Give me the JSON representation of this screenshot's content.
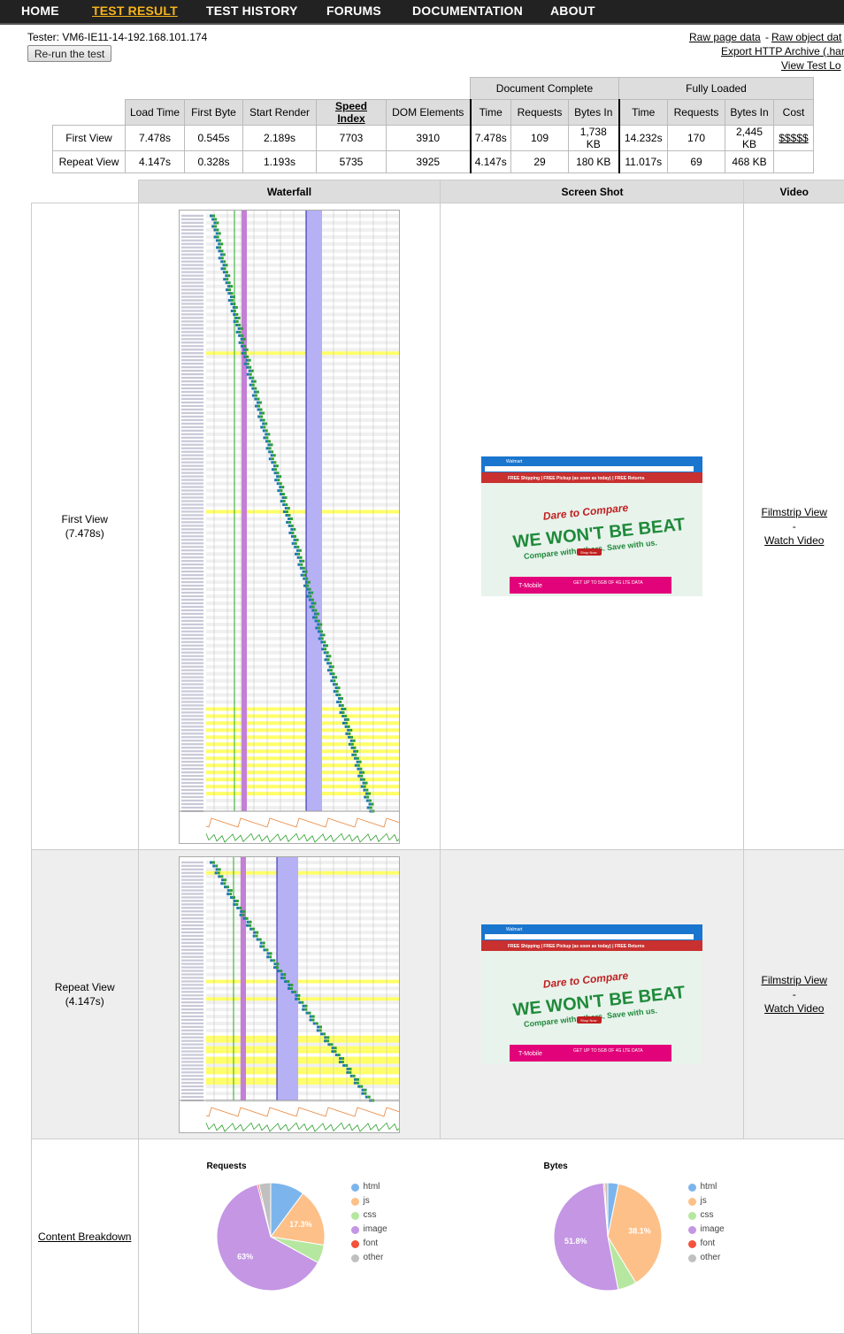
{
  "nav": {
    "items": [
      {
        "label": "HOME",
        "active": false
      },
      {
        "label": "TEST RESULT",
        "active": true
      },
      {
        "label": "TEST HISTORY",
        "active": false
      },
      {
        "label": "FORUMS",
        "active": false
      },
      {
        "label": "DOCUMENTATION",
        "active": false
      },
      {
        "label": "ABOUT",
        "active": false
      }
    ]
  },
  "header": {
    "tester": "Tester: VM6-IE11-14-192.168.101.174",
    "rerun_label": "Re-run the test",
    "links": {
      "raw_page": "Raw page data",
      "separator": "-",
      "raw_object": "Raw object dat",
      "export": "Export HTTP Archive (.har",
      "view_log": "View Test Lo"
    }
  },
  "summary": {
    "groups": {
      "doc_complete": "Document Complete",
      "fully_loaded": "Fully Loaded"
    },
    "headers": [
      "Load Time",
      "First Byte",
      "Start Render",
      "Speed Index",
      "DOM Elements",
      "Time",
      "Requests",
      "Bytes In",
      "Time",
      "Requests",
      "Bytes In",
      "Cost"
    ],
    "rows": [
      {
        "label": "First View",
        "values": [
          "7.478s",
          "0.545s",
          "2.189s",
          "7703",
          "3910",
          "7.478s",
          "109",
          "1,738 KB",
          "14.232s",
          "170",
          "2,445 KB",
          "$$$$$"
        ]
      },
      {
        "label": "Repeat View",
        "values": [
          "4.147s",
          "0.328s",
          "1.193s",
          "5735",
          "3925",
          "4.147s",
          "29",
          "180 KB",
          "11.017s",
          "69",
          "468 KB",
          ""
        ]
      }
    ]
  },
  "results": {
    "headers": {
      "waterfall": "Waterfall",
      "screenshot": "Screen Shot",
      "video": "Video"
    },
    "first": {
      "label": "First View",
      "time": "(7.478s)",
      "filmstrip": "Filmstrip View",
      "sep": "-",
      "video": "Watch Video"
    },
    "repeat": {
      "label": "Repeat View",
      "time": "(4.147s)",
      "filmstrip": "Filmstrip View",
      "sep": "-",
      "video": "Watch Video"
    },
    "content_breakdown": "Content Breakdown"
  },
  "screenshot": {
    "site": "Walmart",
    "banner": "FREE Shipping | FREE Pickup (as soon as today) | FREE Returns",
    "line1": "Dare to Compare",
    "line2": "WE WON'T BE BEAT",
    "line3": "Compare with others. Save with us.",
    "cta": "Shop Now",
    "promo_brand": "T-Mobile",
    "promo_text": "GET UP TO 5GB OF 4G LTE DATA"
  },
  "charts": {
    "legend": [
      {
        "name": "html",
        "color": "#7cb5ec"
      },
      {
        "name": "js",
        "color": "#fdc088"
      },
      {
        "name": "css",
        "color": "#b6e7a0"
      },
      {
        "name": "image",
        "color": "#c496e4"
      },
      {
        "name": "font",
        "color": "#f4523b"
      },
      {
        "name": "other",
        "color": "#c0c0c0"
      }
    ]
  },
  "chart_data": [
    {
      "type": "pie",
      "title": "Requests",
      "categories": [
        "html",
        "js",
        "css",
        "image",
        "font",
        "other"
      ],
      "values": [
        10.2,
        17.3,
        5.5,
        63,
        0.5,
        3.5
      ],
      "labels": {
        "js": "17.3%",
        "image": "63%"
      }
    },
    {
      "type": "pie",
      "title": "Bytes",
      "categories": [
        "html",
        "js",
        "css",
        "image",
        "font",
        "other"
      ],
      "values": [
        3.2,
        38.1,
        5.6,
        51.8,
        0.4,
        0.9
      ],
      "labels": {
        "js": "38.1%",
        "image": "51.8%"
      }
    }
  ]
}
